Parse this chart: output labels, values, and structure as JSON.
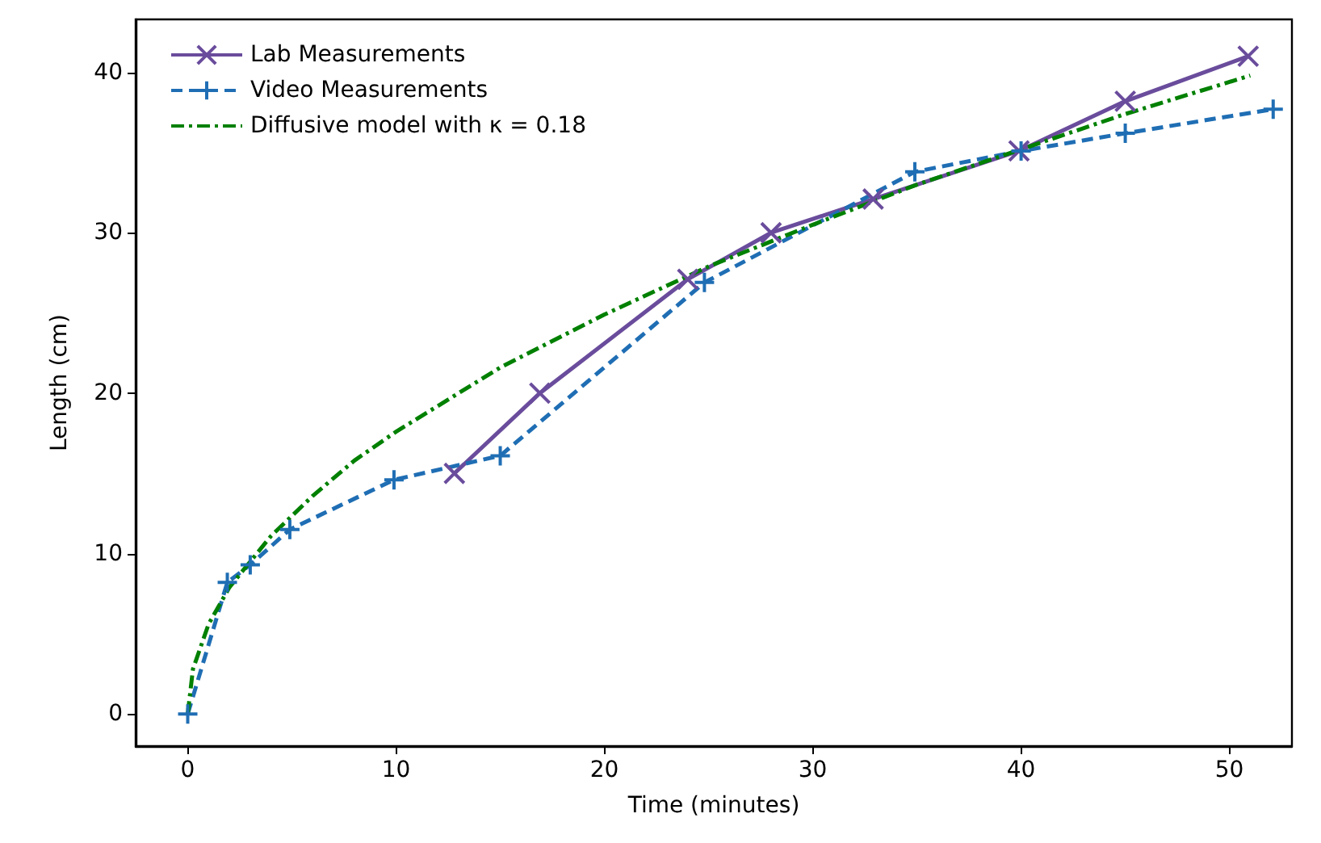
{
  "chart_data": {
    "type": "line",
    "xlabel": "Time (minutes)",
    "ylabel": "Length (cm)",
    "xlim": [
      -2.5,
      53
    ],
    "ylim": [
      -2,
      43.3
    ],
    "xticks": [
      0,
      10,
      20,
      30,
      40,
      50
    ],
    "yticks": [
      0,
      10,
      20,
      30,
      40
    ],
    "grid": false,
    "legend": "top left",
    "series": [
      {
        "name": "Lab Measurements",
        "color": "#6a4c9c",
        "marker": "cross",
        "line_style": "solid",
        "x": [
          12.8,
          16.9,
          24,
          28,
          32.9,
          39.9,
          45,
          50.9
        ],
        "values": [
          15,
          20,
          27.1,
          30,
          32.1,
          35.1,
          38.2,
          41
        ]
      },
      {
        "name": "Video Measurements",
        "color": "#1f6eb4",
        "marker": "plus",
        "line_style": "dashed",
        "x": [
          0,
          1.9,
          3,
          4.9,
          9.9,
          15,
          24.8,
          34.9,
          40,
          45,
          52.1
        ],
        "values": [
          0,
          8.2,
          9.3,
          11.5,
          14.6,
          16.1,
          26.9,
          33.8,
          35.1,
          36.2,
          37.7
        ]
      },
      {
        "name": "Diffusive model with κ = 0.18",
        "color": "#008000",
        "marker": "none",
        "line_style": "dashdot",
        "x": [
          0,
          0.25,
          1,
          2,
          4,
          6,
          8,
          10,
          15,
          20,
          25,
          30,
          35,
          40,
          45,
          51
        ],
        "values": [
          0,
          2.8,
          5.6,
          7.9,
          11.1,
          13.6,
          15.8,
          17.6,
          21.6,
          24.9,
          27.9,
          30.5,
          33,
          35.2,
          37.4,
          39.8
        ]
      }
    ]
  }
}
